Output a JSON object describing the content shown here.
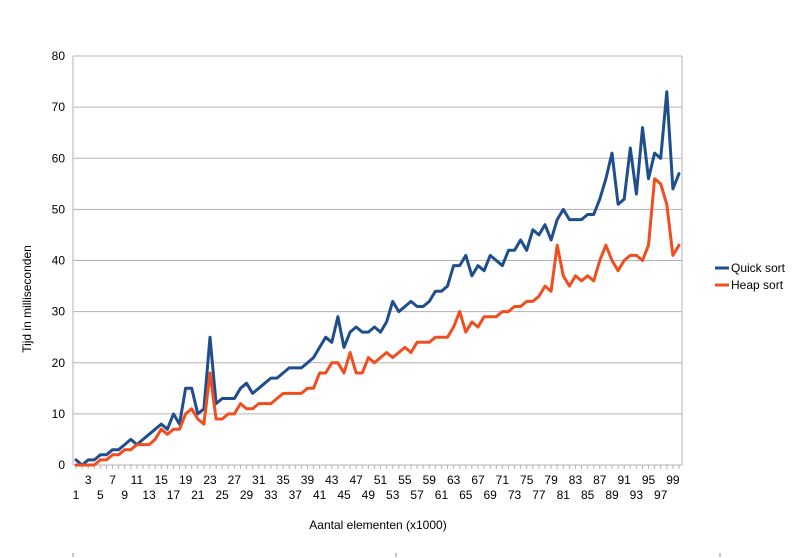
{
  "chart_data": {
    "type": "line",
    "title": "",
    "xlabel": "Aantal elementen (x1000)",
    "ylabel": "Tijd in milliseconden",
    "ylim": [
      0,
      80
    ],
    "yticks": [
      0,
      10,
      20,
      30,
      40,
      50,
      60,
      70,
      80
    ],
    "xlim": [
      1,
      100
    ],
    "xticks_odd_shown": [
      1,
      3,
      5,
      7,
      9,
      11,
      13,
      15,
      17,
      19,
      21,
      23,
      25,
      27,
      29,
      31,
      33,
      35,
      37,
      39,
      41,
      43,
      45,
      47,
      49,
      51,
      53,
      55,
      57,
      59,
      61,
      63,
      65,
      67,
      69,
      71,
      73,
      75,
      77,
      79,
      81,
      83,
      85,
      87,
      89,
      91,
      93,
      95,
      97,
      99
    ],
    "grid": "horizontal",
    "legend_position": "right",
    "series": [
      {
        "name": "Quick sort",
        "color": "#1f4e8c",
        "values": [
          1,
          0,
          1,
          1,
          2,
          2,
          3,
          3,
          4,
          5,
          4,
          5,
          6,
          7,
          8,
          7,
          10,
          8,
          15,
          15,
          10,
          11,
          25,
          12,
          13,
          13,
          13,
          15,
          16,
          14,
          15,
          16,
          17,
          17,
          18,
          19,
          19,
          19,
          20,
          21,
          23,
          25,
          24,
          29,
          23,
          26,
          27,
          26,
          26,
          27,
          26,
          28,
          32,
          30,
          31,
          32,
          31,
          31,
          32,
          34,
          34,
          35,
          39,
          39,
          41,
          37,
          39,
          38,
          41,
          40,
          39,
          42,
          42,
          44,
          42,
          46,
          45,
          47,
          44,
          48,
          50,
          48,
          48,
          48,
          49,
          49,
          52,
          56,
          61,
          51,
          52,
          62,
          53,
          66,
          56,
          61,
          60,
          73,
          54,
          57
        ]
      },
      {
        "name": "Heap sort",
        "color": "#f04e1e",
        "values": [
          0,
          0,
          0,
          0,
          1,
          1,
          2,
          2,
          3,
          3,
          4,
          4,
          4,
          5,
          7,
          6,
          7,
          7,
          10,
          11,
          9,
          8,
          18,
          9,
          9,
          10,
          10,
          12,
          11,
          11,
          12,
          12,
          12,
          13,
          14,
          14,
          14,
          14,
          15,
          15,
          18,
          18,
          20,
          20,
          18,
          22,
          18,
          18,
          21,
          20,
          21,
          22,
          21,
          22,
          23,
          22,
          24,
          24,
          24,
          25,
          25,
          25,
          27,
          30,
          26,
          28,
          27,
          29,
          29,
          29,
          30,
          30,
          31,
          31,
          32,
          32,
          33,
          35,
          34,
          43,
          37,
          35,
          37,
          36,
          37,
          36,
          40,
          43,
          40,
          38,
          40,
          41,
          41,
          40,
          43,
          56,
          55,
          51,
          41,
          43
        ]
      }
    ]
  }
}
